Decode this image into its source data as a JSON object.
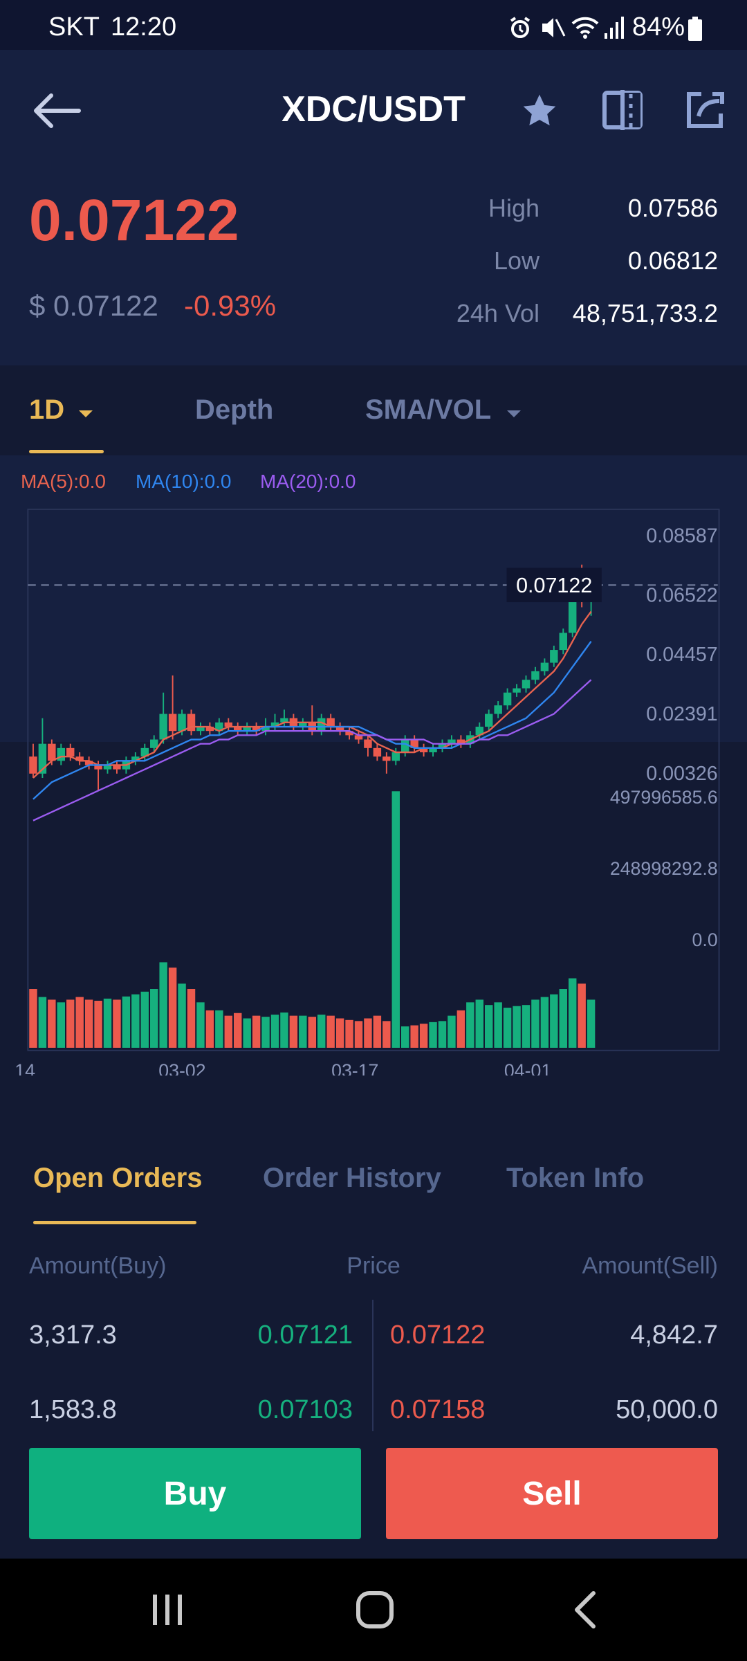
{
  "status_bar": {
    "carrier": "SKT",
    "time": "12:20",
    "battery": "84%"
  },
  "header": {
    "title": "XDC/USDT",
    "back_icon": "arrow-left-icon",
    "star_icon": "star-icon",
    "compare_icon": "compare-icon",
    "share_icon": "share-icon"
  },
  "ticker": {
    "price": "0.07122",
    "usd_price": "$ 0.07122",
    "change": "-0.93%",
    "high_label": "High",
    "high": "0.07586",
    "low_label": "Low",
    "low": "0.06812",
    "vol_label": "24h Vol",
    "vol": "48,751,733.2"
  },
  "chart_tabs": {
    "interval": "1D",
    "depth": "Depth",
    "indicators": "SMA/VOL"
  },
  "ma_labels": {
    "ma5": "MA(5):0.0",
    "ma10": "MA(10):0.0",
    "ma20": "MA(20):0.0"
  },
  "colors": {
    "up": "#16b07e",
    "down": "#ec5a4d",
    "ma5": "#e8634f",
    "ma10": "#2f86f0",
    "ma20": "#9b5cf0",
    "accent": "#e9b956"
  },
  "chart_data": {
    "type": "candlestick",
    "current_price_label": "0.07122",
    "price_axis": [
      "0.08587",
      "0.06522",
      "0.04457",
      "0.02391",
      "0.00326"
    ],
    "volume_axis": [
      "497996585.6",
      "248998292.8",
      "0.0"
    ],
    "x_ticks": [
      "14",
      "03-02",
      "03-17",
      "04-01"
    ],
    "ylim": [
      0.00326,
      0.08587
    ],
    "vol_max": 497996585.6,
    "candles": [
      [
        0.031,
        0.027,
        0.034,
        0.026
      ],
      [
        0.027,
        0.034,
        0.04,
        0.026
      ],
      [
        0.034,
        0.03,
        0.035,
        0.029
      ],
      [
        0.03,
        0.033,
        0.034,
        0.029
      ],
      [
        0.033,
        0.031,
        0.034,
        0.03
      ],
      [
        0.031,
        0.03,
        0.032,
        0.029
      ],
      [
        0.03,
        0.029,
        0.031,
        0.028
      ],
      [
        0.029,
        0.028,
        0.03,
        0.023
      ],
      [
        0.028,
        0.029,
        0.03,
        0.027
      ],
      [
        0.029,
        0.028,
        0.03,
        0.027
      ],
      [
        0.028,
        0.03,
        0.031,
        0.027
      ],
      [
        0.03,
        0.031,
        0.032,
        0.029
      ],
      [
        0.031,
        0.033,
        0.034,
        0.03
      ],
      [
        0.033,
        0.035,
        0.036,
        0.032
      ],
      [
        0.035,
        0.041,
        0.046,
        0.034
      ],
      [
        0.041,
        0.037,
        0.05,
        0.035
      ],
      [
        0.037,
        0.041,
        0.042,
        0.036
      ],
      [
        0.041,
        0.037,
        0.042,
        0.036
      ],
      [
        0.037,
        0.038,
        0.039,
        0.036
      ],
      [
        0.038,
        0.037,
        0.039,
        0.036
      ],
      [
        0.037,
        0.039,
        0.04,
        0.036
      ],
      [
        0.039,
        0.038,
        0.04,
        0.037
      ],
      [
        0.038,
        0.037,
        0.039,
        0.036
      ],
      [
        0.037,
        0.038,
        0.039,
        0.036
      ],
      [
        0.038,
        0.037,
        0.039,
        0.036
      ],
      [
        0.037,
        0.038,
        0.04,
        0.036
      ],
      [
        0.038,
        0.039,
        0.041,
        0.037
      ],
      [
        0.039,
        0.04,
        0.042,
        0.038
      ],
      [
        0.04,
        0.038,
        0.041,
        0.037
      ],
      [
        0.038,
        0.039,
        0.04,
        0.037
      ],
      [
        0.039,
        0.037,
        0.043,
        0.036
      ],
      [
        0.037,
        0.04,
        0.041,
        0.036
      ],
      [
        0.04,
        0.038,
        0.041,
        0.037
      ],
      [
        0.038,
        0.037,
        0.039,
        0.036
      ],
      [
        0.037,
        0.036,
        0.038,
        0.035
      ],
      [
        0.036,
        0.035,
        0.037,
        0.034
      ],
      [
        0.035,
        0.033,
        0.036,
        0.031
      ],
      [
        0.033,
        0.031,
        0.034,
        0.03
      ],
      [
        0.031,
        0.03,
        0.032,
        0.027
      ],
      [
        0.03,
        0.032,
        0.033,
        0.029
      ],
      [
        0.032,
        0.035,
        0.036,
        0.031
      ],
      [
        0.035,
        0.033,
        0.036,
        0.032
      ],
      [
        0.033,
        0.032,
        0.034,
        0.031
      ],
      [
        0.032,
        0.033,
        0.034,
        0.031
      ],
      [
        0.033,
        0.034,
        0.035,
        0.032
      ],
      [
        0.034,
        0.035,
        0.036,
        0.033
      ],
      [
        0.035,
        0.034,
        0.036,
        0.033
      ],
      [
        0.034,
        0.036,
        0.037,
        0.033
      ],
      [
        0.036,
        0.038,
        0.039,
        0.035
      ],
      [
        0.038,
        0.041,
        0.042,
        0.037
      ],
      [
        0.041,
        0.043,
        0.044,
        0.04
      ],
      [
        0.043,
        0.046,
        0.047,
        0.042
      ],
      [
        0.046,
        0.047,
        0.048,
        0.045
      ],
      [
        0.047,
        0.049,
        0.05,
        0.046
      ],
      [
        0.049,
        0.051,
        0.052,
        0.048
      ],
      [
        0.051,
        0.053,
        0.054,
        0.05
      ],
      [
        0.053,
        0.056,
        0.057,
        0.052
      ],
      [
        0.056,
        0.06,
        0.061,
        0.055
      ],
      [
        0.06,
        0.072,
        0.074,
        0.059
      ],
      [
        0.072,
        0.07,
        0.076,
        0.066
      ],
      [
        0.07,
        0.071,
        0.073,
        0.064
      ]
    ],
    "volumes": [
      110,
      95,
      90,
      85,
      90,
      95,
      90,
      88,
      92,
      90,
      96,
      100,
      105,
      110,
      160,
      150,
      120,
      110,
      85,
      70,
      70,
      60,
      65,
      55,
      60,
      58,
      62,
      66,
      60,
      60,
      58,
      62,
      60,
      55,
      52,
      50,
      55,
      60,
      50,
      480,
      40,
      42,
      45,
      48,
      50,
      60,
      70,
      85,
      90,
      80,
      85,
      75,
      78,
      80,
      90,
      95,
      100,
      110,
      130,
      120,
      90
    ],
    "ma5": [
      0.026,
      0.028,
      0.03,
      0.031,
      0.031,
      0.03,
      0.03,
      0.029,
      0.029,
      0.029,
      0.029,
      0.03,
      0.031,
      0.032,
      0.035,
      0.036,
      0.037,
      0.038,
      0.038,
      0.038,
      0.037,
      0.038,
      0.038,
      0.038,
      0.038,
      0.038,
      0.038,
      0.039,
      0.039,
      0.039,
      0.039,
      0.039,
      0.038,
      0.038,
      0.038,
      0.037,
      0.036,
      0.034,
      0.033,
      0.032,
      0.032,
      0.032,
      0.033,
      0.033,
      0.033,
      0.034,
      0.034,
      0.035,
      0.036,
      0.037,
      0.039,
      0.041,
      0.043,
      0.045,
      0.047,
      0.049,
      0.051,
      0.054,
      0.058,
      0.062,
      0.065
    ],
    "ma10": [
      0.021,
      0.023,
      0.025,
      0.026,
      0.027,
      0.028,
      0.029,
      0.029,
      0.029,
      0.03,
      0.03,
      0.03,
      0.03,
      0.031,
      0.032,
      0.033,
      0.034,
      0.035,
      0.035,
      0.036,
      0.036,
      0.037,
      0.037,
      0.037,
      0.037,
      0.038,
      0.038,
      0.038,
      0.038,
      0.038,
      0.038,
      0.038,
      0.038,
      0.038,
      0.038,
      0.038,
      0.037,
      0.036,
      0.035,
      0.034,
      0.034,
      0.033,
      0.033,
      0.033,
      0.033,
      0.033,
      0.034,
      0.034,
      0.035,
      0.036,
      0.037,
      0.038,
      0.039,
      0.04,
      0.042,
      0.044,
      0.046,
      0.049,
      0.052,
      0.055,
      0.058
    ],
    "ma20": [
      0.016,
      0.017,
      0.018,
      0.019,
      0.02,
      0.021,
      0.022,
      0.023,
      0.024,
      0.025,
      0.026,
      0.027,
      0.028,
      0.029,
      0.03,
      0.031,
      0.032,
      0.033,
      0.034,
      0.034,
      0.035,
      0.035,
      0.036,
      0.036,
      0.036,
      0.037,
      0.037,
      0.037,
      0.037,
      0.037,
      0.037,
      0.037,
      0.037,
      0.037,
      0.037,
      0.036,
      0.036,
      0.036,
      0.035,
      0.035,
      0.035,
      0.035,
      0.035,
      0.034,
      0.034,
      0.034,
      0.034,
      0.034,
      0.035,
      0.035,
      0.036,
      0.036,
      0.037,
      0.038,
      0.039,
      0.04,
      0.041,
      0.043,
      0.045,
      0.047,
      0.049
    ]
  },
  "order_tabs": [
    "Open Orders",
    "Order History",
    "Token Info"
  ],
  "order_columns": {
    "buy": "Amount(Buy)",
    "price": "Price",
    "sell": "Amount(Sell)"
  },
  "orders": [
    {
      "buy_amount": "3,317.3",
      "buy_price": "0.07121",
      "sell_price": "0.07122",
      "sell_amount": "4,842.7"
    },
    {
      "buy_amount": "1,583.8",
      "buy_price": "0.07103",
      "sell_price": "0.07158",
      "sell_amount": "50,000.0"
    }
  ],
  "actions": {
    "buy": "Buy",
    "sell": "Sell"
  },
  "nav": {
    "recent": "recent-apps-icon",
    "home": "home-icon",
    "back": "back-icon"
  }
}
